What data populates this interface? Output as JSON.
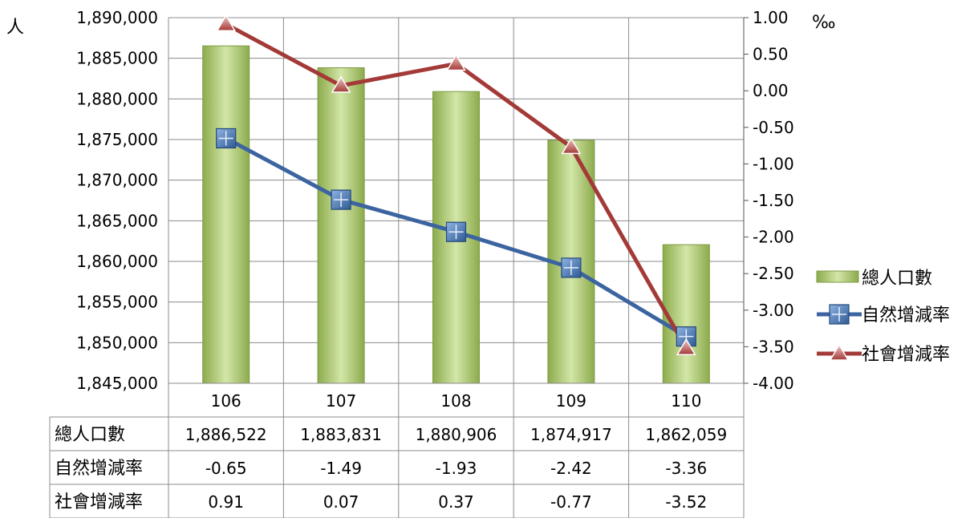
{
  "chart_data": {
    "type": "bar",
    "categories": [
      "106",
      "107",
      "108",
      "109",
      "110"
    ],
    "left_axis": {
      "unit_label": "人",
      "min": 1845000,
      "max": 1890000,
      "step": 5000,
      "ticks": [
        "1,845,000",
        "1,850,000",
        "1,855,000",
        "1,860,000",
        "1,865,000",
        "1,870,000",
        "1,875,000",
        "1,880,000",
        "1,885,000",
        "1,890,000"
      ]
    },
    "right_axis": {
      "unit_label": "‰",
      "min": -4,
      "max": 1,
      "step": 0.5,
      "ticks": [
        "-4.00",
        "-3.50",
        "-3.00",
        "-2.50",
        "-2.00",
        "-1.50",
        "-1.00",
        "-0.50",
        "0.00",
        "0.50",
        "1.00"
      ]
    },
    "series": [
      {
        "name": "總人口數",
        "kind": "bar",
        "axis": "left",
        "values": [
          1886522,
          1883831,
          1880906,
          1874917,
          1862059
        ],
        "labels": [
          "1,886,522",
          "1,883,831",
          "1,880,906",
          "1,874,917",
          "1,862,059"
        ],
        "color": "#9bbb59"
      },
      {
        "name": "自然增減率",
        "kind": "line",
        "axis": "right",
        "marker": "square-plus",
        "values": [
          -0.65,
          -1.49,
          -1.93,
          -2.42,
          -3.36
        ],
        "labels": [
          "-0.65",
          "-1.49",
          "-1.93",
          "-2.42",
          "-3.36"
        ],
        "color": "#3b64a0"
      },
      {
        "name": "社會增減率",
        "kind": "line",
        "axis": "right",
        "marker": "triangle",
        "values": [
          0.91,
          0.07,
          0.37,
          -0.77,
          -3.52
        ],
        "labels": [
          "0.91",
          "0.07",
          "0.37",
          "-0.77",
          "-3.52"
        ],
        "color": "#a33a37"
      }
    ],
    "grid": true,
    "legend_position": "right",
    "data_table": true
  }
}
